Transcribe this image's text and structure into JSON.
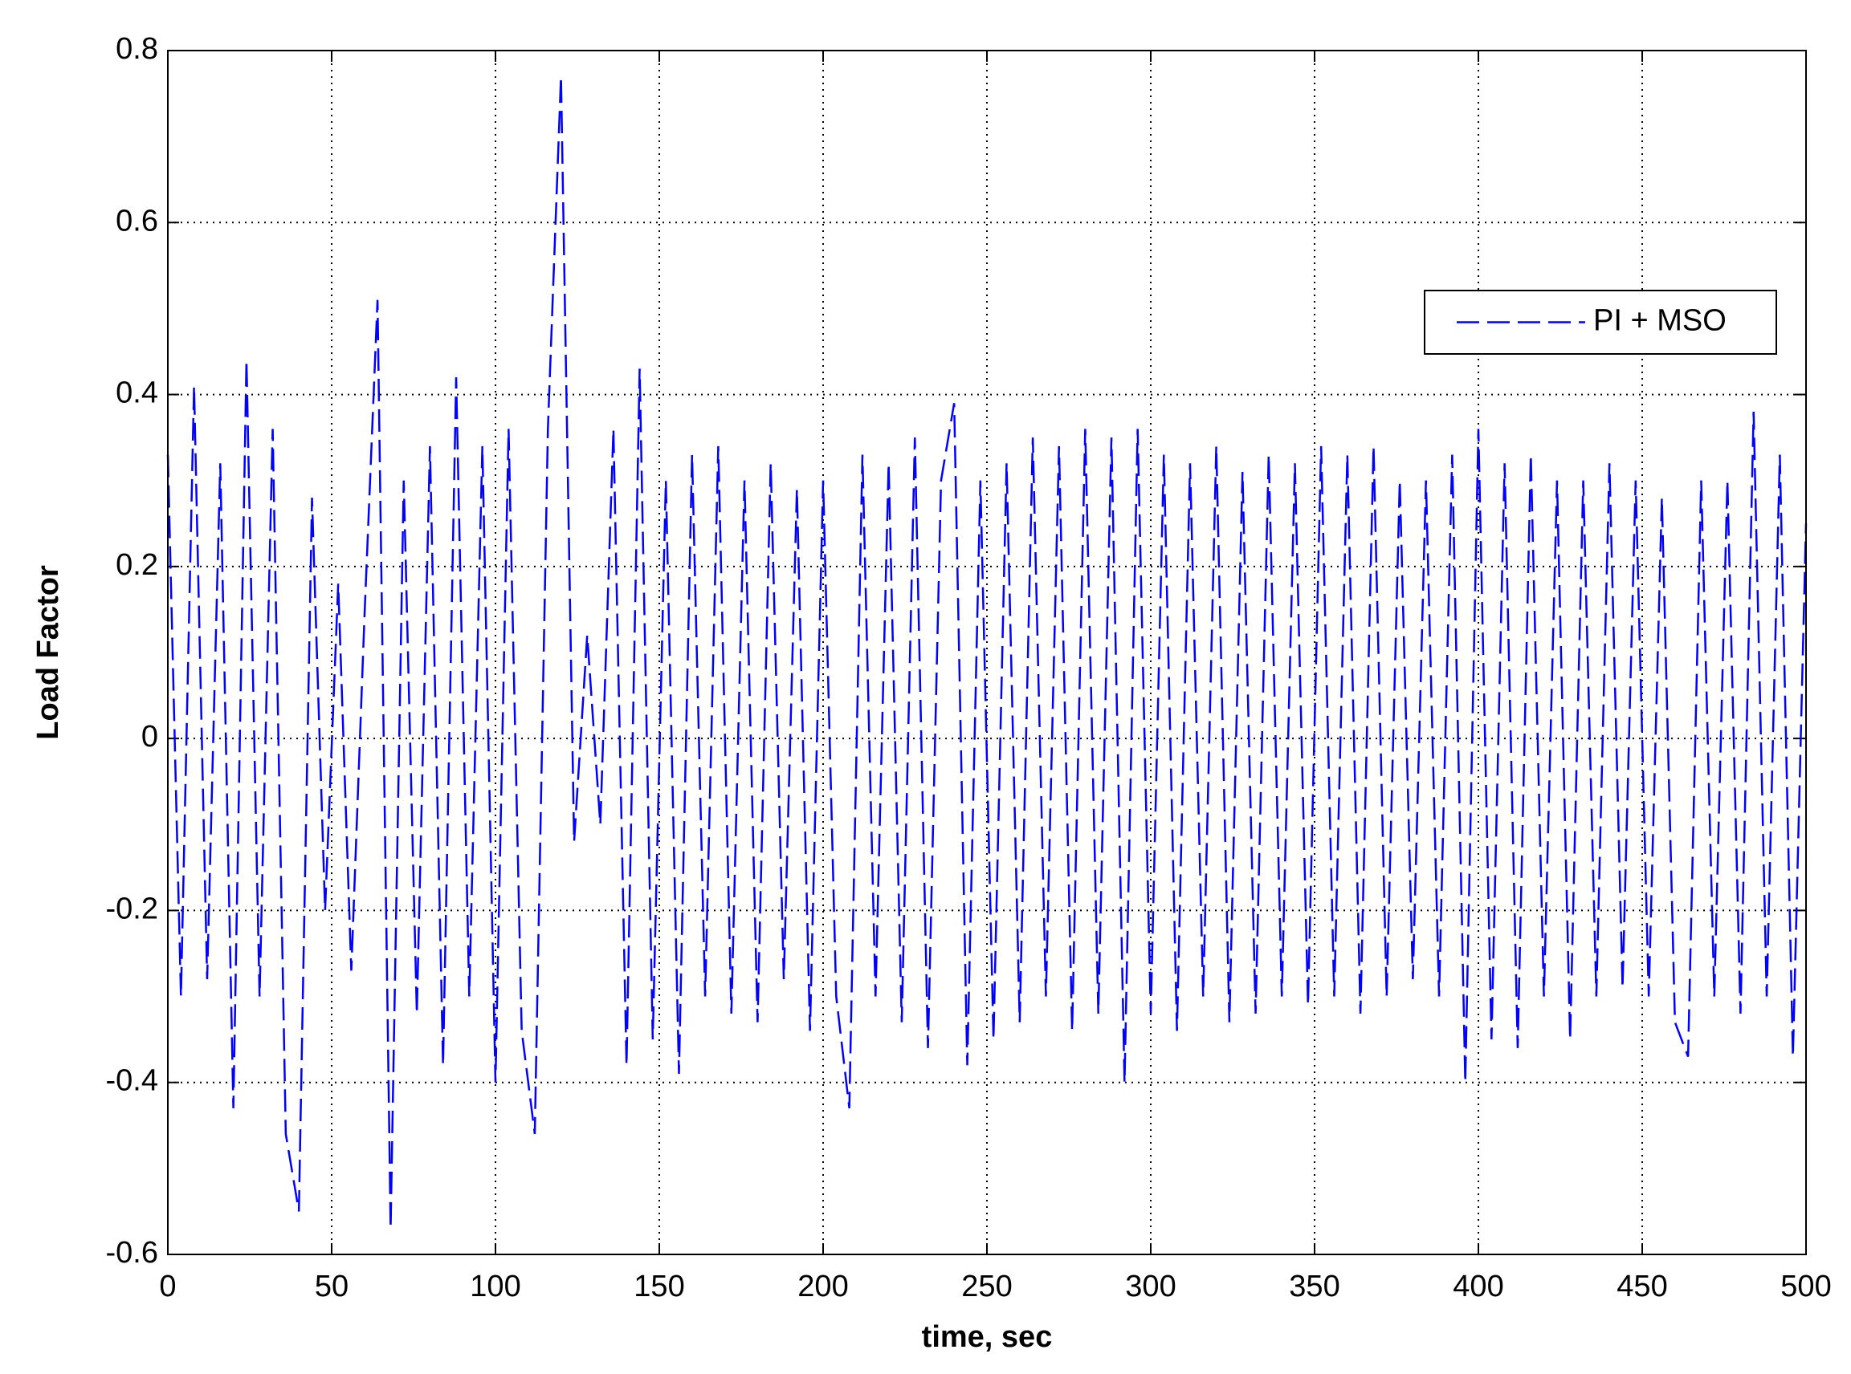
{
  "chart_data": {
    "type": "line",
    "xlabel": "time, sec",
    "ylabel": "Load Factor",
    "xlim": [
      0,
      500
    ],
    "ylim": [
      -0.6,
      0.8
    ],
    "xticks": [
      0,
      50,
      100,
      150,
      200,
      250,
      300,
      350,
      400,
      450,
      500
    ],
    "yticks": [
      -0.6,
      -0.4,
      -0.2,
      0,
      0.2,
      0.4,
      0.6,
      0.8
    ],
    "grid": true,
    "legend": "upper right",
    "x": [
      0,
      4,
      8,
      12,
      16,
      20,
      24,
      28,
      32,
      36,
      40,
      44,
      48,
      52,
      56,
      60,
      64,
      68,
      72,
      76,
      80,
      84,
      88,
      92,
      96,
      100,
      104,
      108,
      112,
      116,
      120,
      124,
      128,
      132,
      136,
      140,
      144,
      148,
      152,
      156,
      160,
      164,
      168,
      172,
      176,
      180,
      184,
      188,
      192,
      196,
      200,
      204,
      208,
      212,
      216,
      220,
      224,
      228,
      232,
      236,
      240,
      244,
      248,
      252,
      256,
      260,
      264,
      268,
      272,
      276,
      280,
      284,
      288,
      292,
      296,
      300,
      304,
      308,
      312,
      316,
      320,
      324,
      328,
      332,
      336,
      340,
      344,
      348,
      352,
      356,
      360,
      364,
      368,
      372,
      376,
      380,
      384,
      388,
      392,
      396,
      400,
      404,
      408,
      412,
      416,
      420,
      424,
      428,
      432,
      436,
      440,
      444,
      448,
      452,
      456,
      460,
      464,
      468,
      472,
      476,
      480,
      484,
      488,
      492,
      496,
      500
    ],
    "series": [
      {
        "name": "PI + MSO",
        "color": "#0000ff",
        "values": [
          0.33,
          -0.3,
          0.41,
          -0.28,
          0.32,
          -0.43,
          0.44,
          -0.3,
          0.36,
          -0.46,
          -0.55,
          0.28,
          -0.2,
          0.18,
          -0.27,
          0.14,
          0.51,
          -0.57,
          0.3,
          -0.32,
          0.34,
          -0.38,
          0.42,
          -0.3,
          0.34,
          -0.4,
          0.36,
          -0.34,
          -0.46,
          0.36,
          0.77,
          -0.12,
          0.12,
          -0.1,
          0.36,
          -0.38,
          0.43,
          -0.35,
          0.3,
          -0.39,
          0.33,
          -0.3,
          0.34,
          -0.32,
          0.3,
          -0.33,
          0.32,
          -0.28,
          0.29,
          -0.34,
          0.3,
          -0.3,
          -0.43,
          0.33,
          -0.3,
          0.32,
          -0.33,
          0.35,
          -0.36,
          0.3,
          0.39,
          -0.38,
          0.3,
          -0.35,
          0.32,
          -0.33,
          0.35,
          -0.3,
          0.34,
          -0.34,
          0.36,
          -0.32,
          0.35,
          -0.4,
          0.36,
          -0.32,
          0.33,
          -0.34,
          0.32,
          -0.3,
          0.34,
          -0.33,
          0.31,
          -0.32,
          0.33,
          -0.3,
          0.32,
          -0.31,
          0.34,
          -0.3,
          0.33,
          -0.32,
          0.34,
          -0.3,
          0.3,
          -0.28,
          0.3,
          -0.3,
          0.33,
          -0.4,
          0.36,
          -0.35,
          0.32,
          -0.36,
          0.33,
          -0.3,
          0.3,
          -0.35,
          0.3,
          -0.3,
          0.32,
          -0.29,
          0.3,
          -0.3,
          0.28,
          -0.33,
          -0.37,
          0.3,
          -0.3,
          0.3,
          -0.32,
          0.38,
          -0.3,
          0.33,
          -0.37,
          0.25
        ]
      }
    ]
  }
}
